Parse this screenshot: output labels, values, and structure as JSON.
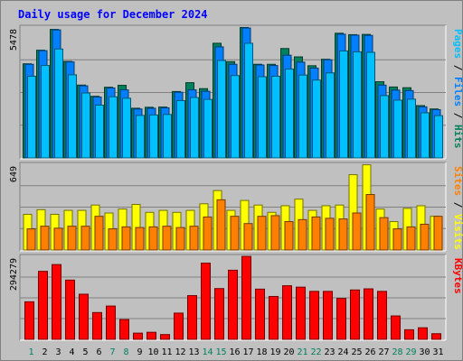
{
  "chart_data": {
    "type": "bar",
    "title": "Daily usage for December 2024",
    "categories": [
      "1",
      "2",
      "3",
      "4",
      "5",
      "6",
      "7",
      "8",
      "9",
      "10",
      "11",
      "12",
      "13",
      "14",
      "15",
      "16",
      "17",
      "18",
      "19",
      "20",
      "21",
      "22",
      "23",
      "24",
      "25",
      "26",
      "27",
      "28",
      "29",
      "30",
      "31"
    ],
    "weekend_days": [
      "1",
      "7",
      "8",
      "14",
      "15",
      "21",
      "22",
      "28",
      "29"
    ],
    "panels": [
      {
        "name": "hits-files-pages",
        "ymax_label": "5478",
        "ylim": [
          0,
          5478
        ],
        "right_label_parts": [
          {
            "text": "Pages",
            "color": "#00c0ff"
          },
          {
            "text": " / ",
            "color": "#000000"
          },
          {
            "text": "Files",
            "color": "#0080ff"
          },
          {
            "text": " / ",
            "color": "#000000"
          },
          {
            "text": "Hits",
            "color": "#00805c"
          }
        ],
        "series": [
          {
            "name": "Hits",
            "color": "#00805c",
            "values": [
              3940,
              4510,
              5380,
              4040,
              3050,
              2580,
              2960,
              3040,
              2080,
              2120,
              2130,
              2780,
              3150,
              2900,
              4800,
              4030,
              5460,
              3920,
              3920,
              4580,
              4230,
              3860,
              4130,
              5220,
              5160,
              5170,
              3190,
              2970,
              2940,
              2190,
              2050
            ]
          },
          {
            "name": "Files",
            "color": "#0080ff",
            "values": [
              3920,
              4490,
              5360,
              4020,
              3020,
              2550,
              2930,
              2850,
              2050,
              2080,
              2100,
              2750,
              2850,
              2790,
              4650,
              3920,
              5440,
              3890,
              3870,
              4300,
              4010,
              3760,
              4110,
              5180,
              5140,
              5130,
              3050,
              2840,
              2820,
              2140,
              2020
            ]
          },
          {
            "name": "Pages",
            "color": "#00c0ff",
            "values": [
              3420,
              3870,
              4560,
              3480,
              2720,
              2210,
              2560,
              2500,
              1780,
              1800,
              1820,
              2400,
              2530,
              2450,
              4080,
              3450,
              4800,
              3400,
              3420,
              3720,
              3470,
              3260,
              3560,
              4480,
              4440,
              4420,
              2610,
              2420,
              2460,
              1890,
              1770
            ]
          }
        ]
      },
      {
        "name": "visits-sites",
        "ymax_label": "649",
        "ylim": [
          0,
          649
        ],
        "right_label_parts": [
          {
            "text": "Sites",
            "color": "#ff8000"
          },
          {
            "text": " / ",
            "color": "#000000"
          },
          {
            "text": "Visits",
            "color": "#ffff00"
          }
        ],
        "series": [
          {
            "name": "Visits",
            "color": "#ffff00",
            "values": [
              270,
              305,
              270,
              300,
              300,
              340,
              280,
              310,
              345,
              285,
              300,
              285,
              300,
              350,
              450,
              300,
              375,
              340,
              285,
              335,
              385,
              300,
              335,
              340,
              570,
              645,
              310,
              215,
              315,
              335,
              255
            ]
          },
          {
            "name": "Sites",
            "color": "#ff8000",
            "values": [
              160,
              180,
              165,
              180,
              180,
              255,
              160,
              175,
              170,
              175,
              180,
              170,
              180,
              250,
              380,
              255,
              200,
              255,
              260,
              215,
              230,
              250,
              240,
              235,
              280,
              420,
              245,
              160,
              175,
              195,
              255
            ]
          }
        ]
      },
      {
        "name": "kbytes",
        "ymax_label": "294279",
        "ylim": [
          0,
          294279
        ],
        "right_label_parts": [
          {
            "text": "KBytes",
            "color": "#ff0000"
          }
        ],
        "series": [
          {
            "name": "KBytes",
            "color": "#ff0000",
            "values": [
              133000,
              241000,
              265000,
              210000,
              160000,
              95000,
              118000,
              70000,
              22000,
              25000,
              17000,
              93000,
              155000,
              270000,
              180000,
              245000,
              294000,
              178000,
              152000,
              190000,
              185000,
              170000,
              170000,
              145000,
              175000,
              179000,
              170000,
              83000,
              34000,
              41000,
              20000
            ]
          }
        ]
      }
    ]
  }
}
